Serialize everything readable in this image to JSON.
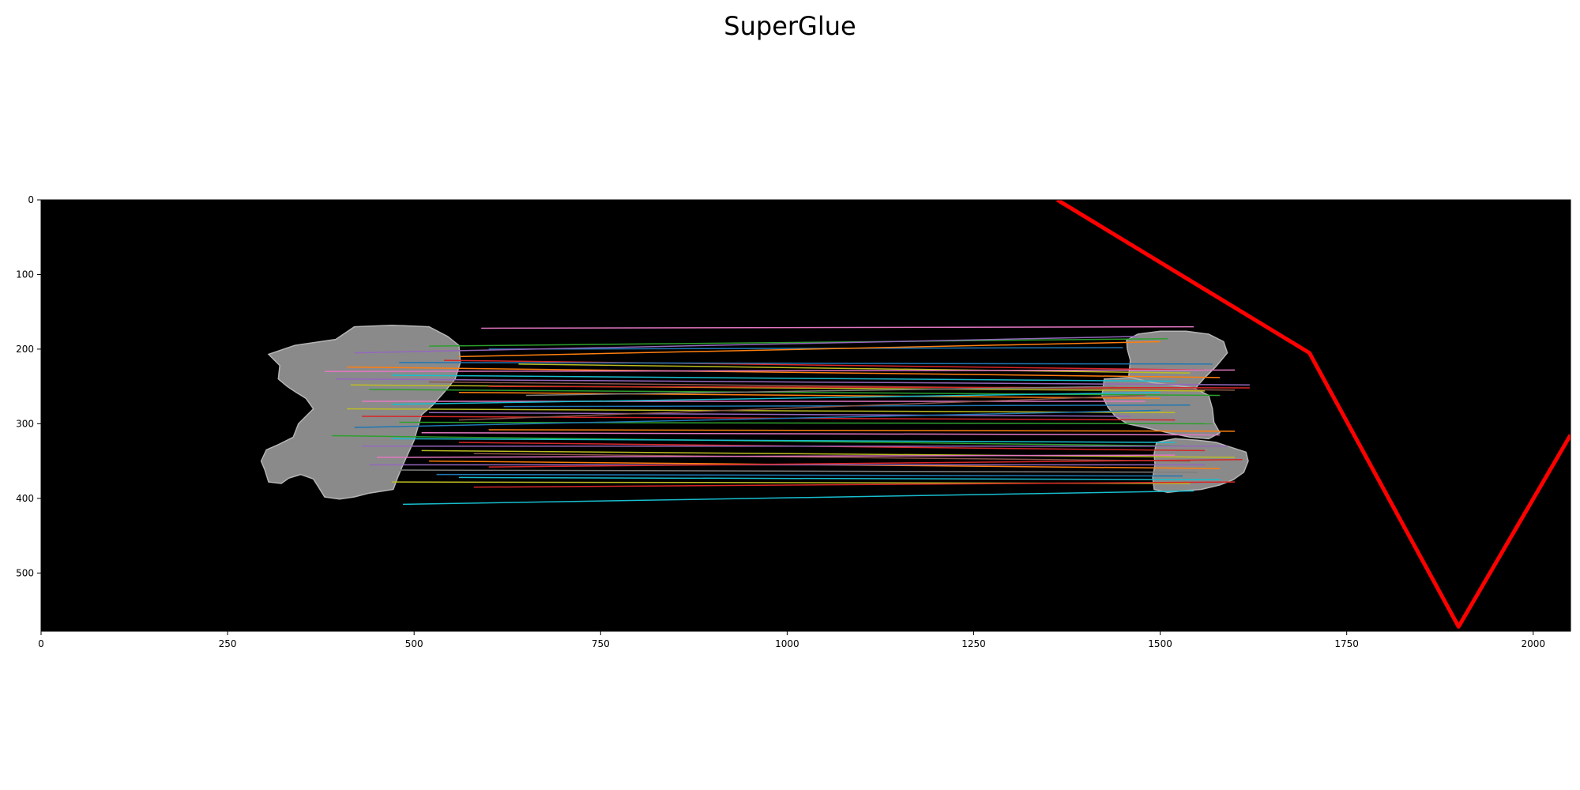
{
  "chart_data": {
    "type": "image-matches",
    "title": "SuperGlue",
    "xlim": [
      0,
      2050
    ],
    "ylim": [
      578,
      0
    ],
    "xticks": [
      0,
      250,
      500,
      750,
      1000,
      1250,
      1500,
      1750,
      2000
    ],
    "yticks": [
      0,
      100,
      200,
      300,
      400,
      500
    ],
    "background": "#000000",
    "fragment_color": "#8a8a8a",
    "fragments": [
      {
        "name": "left",
        "outline": [
          [
            305,
            207
          ],
          [
            340,
            195
          ],
          [
            395,
            187
          ],
          [
            420,
            170
          ],
          [
            470,
            168
          ],
          [
            520,
            170
          ],
          [
            545,
            183
          ],
          [
            560,
            195
          ],
          [
            562,
            218
          ],
          [
            555,
            240
          ],
          [
            540,
            258
          ],
          [
            525,
            275
          ],
          [
            510,
            288
          ],
          [
            505,
            305
          ],
          [
            500,
            322
          ],
          [
            492,
            340
          ],
          [
            485,
            355
          ],
          [
            478,
            372
          ],
          [
            472,
            388
          ],
          [
            440,
            393
          ],
          [
            420,
            398
          ],
          [
            400,
            401
          ],
          [
            380,
            398
          ],
          [
            372,
            385
          ],
          [
            365,
            374
          ],
          [
            348,
            368
          ],
          [
            332,
            373
          ],
          [
            322,
            380
          ],
          [
            305,
            378
          ],
          [
            300,
            362
          ],
          [
            295,
            350
          ],
          [
            302,
            335
          ],
          [
            318,
            328
          ],
          [
            338,
            318
          ],
          [
            345,
            300
          ],
          [
            355,
            290
          ],
          [
            365,
            280
          ],
          [
            355,
            266
          ],
          [
            342,
            258
          ],
          [
            330,
            250
          ],
          [
            318,
            240
          ],
          [
            320,
            222
          ]
        ]
      },
      {
        "name": "right-top",
        "outline": [
          [
            1455,
            188
          ],
          [
            1470,
            180
          ],
          [
            1500,
            176
          ],
          [
            1535,
            176
          ],
          [
            1565,
            180
          ],
          [
            1585,
            190
          ],
          [
            1590,
            205
          ],
          [
            1575,
            223
          ],
          [
            1560,
            238
          ],
          [
            1545,
            255
          ],
          [
            1520,
            268
          ],
          [
            1490,
            272
          ],
          [
            1470,
            268
          ],
          [
            1460,
            255
          ],
          [
            1458,
            235
          ],
          [
            1460,
            215
          ],
          [
            1456,
            200
          ]
        ]
      },
      {
        "name": "right-middle",
        "outline": [
          [
            1425,
            240
          ],
          [
            1460,
            238
          ],
          [
            1490,
            245
          ],
          [
            1515,
            248
          ],
          [
            1545,
            252
          ],
          [
            1565,
            262
          ],
          [
            1570,
            280
          ],
          [
            1572,
            298
          ],
          [
            1580,
            312
          ],
          [
            1565,
            320
          ],
          [
            1540,
            318
          ],
          [
            1510,
            312
          ],
          [
            1480,
            305
          ],
          [
            1456,
            300
          ],
          [
            1440,
            290
          ],
          [
            1430,
            278
          ],
          [
            1422,
            262
          ]
        ]
      },
      {
        "name": "right-bottom",
        "outline": [
          [
            1495,
            325
          ],
          [
            1520,
            320
          ],
          [
            1550,
            322
          ],
          [
            1575,
            325
          ],
          [
            1590,
            330
          ],
          [
            1615,
            338
          ],
          [
            1618,
            350
          ],
          [
            1612,
            365
          ],
          [
            1598,
            375
          ],
          [
            1580,
            382
          ],
          [
            1555,
            388
          ],
          [
            1530,
            390
          ],
          [
            1510,
            392
          ],
          [
            1492,
            388
          ],
          [
            1490,
            372
          ],
          [
            1493,
            355
          ],
          [
            1492,
            340
          ]
        ]
      }
    ],
    "matches": [
      {
        "x1": 590,
        "y1": 172,
        "x2": 1545,
        "y2": 170,
        "color": "#e377c2"
      },
      {
        "x1": 520,
        "y1": 196,
        "x2": 1510,
        "y2": 186,
        "color": "#2ca02c"
      },
      {
        "x1": 600,
        "y1": 200,
        "x2": 1450,
        "y2": 198,
        "color": "#1f77b4"
      },
      {
        "x1": 420,
        "y1": 205,
        "x2": 1470,
        "y2": 183,
        "color": "#9467bd"
      },
      {
        "x1": 560,
        "y1": 210,
        "x2": 1500,
        "y2": 190,
        "color": "#ff7f0e"
      },
      {
        "x1": 540,
        "y1": 215,
        "x2": 1560,
        "y2": 228,
        "color": "#d62728"
      },
      {
        "x1": 480,
        "y1": 218,
        "x2": 1570,
        "y2": 220,
        "color": "#1f77b4"
      },
      {
        "x1": 640,
        "y1": 220,
        "x2": 1540,
        "y2": 232,
        "color": "#bcbd22"
      },
      {
        "x1": 410,
        "y1": 224,
        "x2": 1580,
        "y2": 238,
        "color": "#ff7f0e"
      },
      {
        "x1": 380,
        "y1": 230,
        "x2": 1600,
        "y2": 228,
        "color": "#e377c2"
      },
      {
        "x1": 470,
        "y1": 235,
        "x2": 1520,
        "y2": 243,
        "color": "#17becf"
      },
      {
        "x1": 395,
        "y1": 240,
        "x2": 1620,
        "y2": 248,
        "color": "#9467bd"
      },
      {
        "x1": 520,
        "y1": 244,
        "x2": 1600,
        "y2": 255,
        "color": "#8c564b"
      },
      {
        "x1": 415,
        "y1": 248,
        "x2": 1560,
        "y2": 256,
        "color": "#bcbd22"
      },
      {
        "x1": 600,
        "y1": 250,
        "x2": 1620,
        "y2": 252,
        "color": "#d62728"
      },
      {
        "x1": 440,
        "y1": 254,
        "x2": 1580,
        "y2": 262,
        "color": "#2ca02c"
      },
      {
        "x1": 560,
        "y1": 258,
        "x2": 1500,
        "y2": 266,
        "color": "#ff7f0e"
      },
      {
        "x1": 650,
        "y1": 262,
        "x2": 1440,
        "y2": 250,
        "color": "#7f7f7f"
      },
      {
        "x1": 430,
        "y1": 270,
        "x2": 1480,
        "y2": 270,
        "color": "#e377c2"
      },
      {
        "x1": 470,
        "y1": 274,
        "x2": 1500,
        "y2": 258,
        "color": "#17becf"
      },
      {
        "x1": 620,
        "y1": 277,
        "x2": 1540,
        "y2": 275,
        "color": "#1f77b4"
      },
      {
        "x1": 410,
        "y1": 280,
        "x2": 1520,
        "y2": 285,
        "color": "#bcbd22"
      },
      {
        "x1": 520,
        "y1": 285,
        "x2": 1460,
        "y2": 290,
        "color": "#9467bd"
      },
      {
        "x1": 430,
        "y1": 290,
        "x2": 1520,
        "y2": 295,
        "color": "#d62728"
      },
      {
        "x1": 560,
        "y1": 295,
        "x2": 1480,
        "y2": 262,
        "color": "#8c564b"
      },
      {
        "x1": 480,
        "y1": 298,
        "x2": 1570,
        "y2": 300,
        "color": "#2ca02c"
      },
      {
        "x1": 420,
        "y1": 305,
        "x2": 1500,
        "y2": 282,
        "color": "#1f77b4"
      },
      {
        "x1": 600,
        "y1": 308,
        "x2": 1600,
        "y2": 310,
        "color": "#ff7f0e"
      },
      {
        "x1": 510,
        "y1": 312,
        "x2": 1580,
        "y2": 315,
        "color": "#e377c2"
      },
      {
        "x1": 390,
        "y1": 316,
        "x2": 1540,
        "y2": 330,
        "color": "#2ca02c"
      },
      {
        "x1": 470,
        "y1": 320,
        "x2": 1520,
        "y2": 325,
        "color": "#17becf"
      },
      {
        "x1": 560,
        "y1": 325,
        "x2": 1560,
        "y2": 336,
        "color": "#d62728"
      },
      {
        "x1": 430,
        "y1": 330,
        "x2": 1590,
        "y2": 330,
        "color": "#9467bd"
      },
      {
        "x1": 510,
        "y1": 336,
        "x2": 1600,
        "y2": 345,
        "color": "#bcbd22"
      },
      {
        "x1": 580,
        "y1": 340,
        "x2": 1540,
        "y2": 350,
        "color": "#8c564b"
      },
      {
        "x1": 450,
        "y1": 345,
        "x2": 1520,
        "y2": 342,
        "color": "#e377c2"
      },
      {
        "x1": 520,
        "y1": 350,
        "x2": 1580,
        "y2": 360,
        "color": "#ff7f0e"
      },
      {
        "x1": 440,
        "y1": 355,
        "x2": 1560,
        "y2": 355,
        "color": "#9467bd"
      },
      {
        "x1": 600,
        "y1": 358,
        "x2": 1610,
        "y2": 348,
        "color": "#d62728"
      },
      {
        "x1": 480,
        "y1": 362,
        "x2": 1550,
        "y2": 365,
        "color": "#7f7f7f"
      },
      {
        "x1": 530,
        "y1": 368,
        "x2": 1530,
        "y2": 370,
        "color": "#1f77b4"
      },
      {
        "x1": 560,
        "y1": 372,
        "x2": 1580,
        "y2": 375,
        "color": "#17becf"
      },
      {
        "x1": 470,
        "y1": 378,
        "x2": 1540,
        "y2": 380,
        "color": "#bcbd22"
      },
      {
        "x1": 580,
        "y1": 385,
        "x2": 1600,
        "y2": 378,
        "color": "#d62728"
      },
      {
        "x1": 485,
        "y1": 408,
        "x2": 1545,
        "y2": 390,
        "color": "#17becf"
      }
    ],
    "polygon": {
      "color": "#ff0000",
      "points": [
        [
          1362,
          0
        ],
        [
          1700,
          205
        ],
        [
          1900,
          572
        ],
        [
          2050,
          315
        ]
      ]
    }
  }
}
